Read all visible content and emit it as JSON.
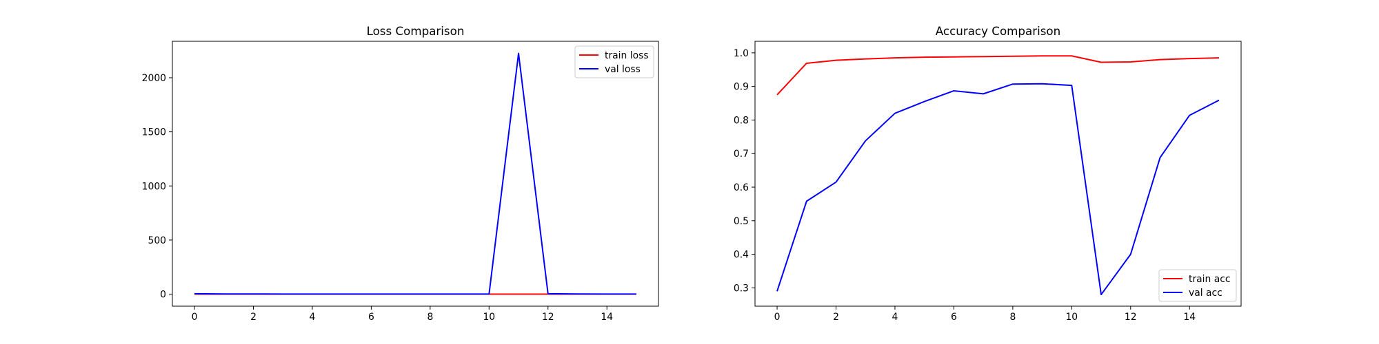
{
  "chart_data": [
    {
      "type": "line",
      "title": "Loss Comparison",
      "xlabel": "",
      "ylabel": "",
      "xlim": [
        -0.75,
        15.75
      ],
      "ylim": [
        -111,
        2337
      ],
      "xticks": [
        0,
        2,
        4,
        6,
        8,
        10,
        12,
        14
      ],
      "yticks": [
        0,
        500,
        1000,
        1500,
        2000
      ],
      "grid": false,
      "legend_position": "top-right",
      "x": [
        0,
        1,
        2,
        3,
        4,
        5,
        6,
        7,
        8,
        9,
        10,
        11,
        12,
        13,
        14,
        15
      ],
      "series": [
        {
          "name": "train loss",
          "color": "#ff0000",
          "values": [
            0.35,
            0.08,
            0.06,
            0.05,
            0.04,
            0.03,
            0.03,
            0.03,
            0.02,
            0.02,
            0.02,
            0.08,
            0.07,
            0.05,
            0.04,
            0.04
          ]
        },
        {
          "name": "val loss",
          "color": "#0000ff",
          "values": [
            4,
            2,
            2,
            1,
            1,
            1,
            1,
            1,
            1,
            1,
            1,
            2225,
            4,
            2,
            1,
            1
          ]
        }
      ]
    },
    {
      "type": "line",
      "title": "Accuracy Comparison",
      "xlabel": "",
      "ylabel": "",
      "xlim": [
        -0.75,
        15.75
      ],
      "ylim": [
        0.2455,
        1.0345
      ],
      "xticks": [
        0,
        2,
        4,
        6,
        8,
        10,
        12,
        14
      ],
      "yticks": [
        0.3,
        0.4,
        0.5,
        0.6,
        0.7,
        0.8,
        0.9,
        1.0
      ],
      "ytick_labels": [
        "0.3",
        "0.4",
        "0.5",
        "0.6",
        "0.7",
        "0.8",
        "0.9",
        "1.0"
      ],
      "grid": false,
      "legend_position": "bottom-right",
      "x": [
        0,
        1,
        2,
        3,
        4,
        5,
        6,
        7,
        8,
        9,
        10,
        11,
        12,
        13,
        14,
        15
      ],
      "series": [
        {
          "name": "train acc",
          "color": "#ff0000",
          "values": [
            0.875,
            0.969,
            0.978,
            0.982,
            0.985,
            0.987,
            0.988,
            0.989,
            0.99,
            0.991,
            0.991,
            0.972,
            0.973,
            0.98,
            0.983,
            0.985
          ]
        },
        {
          "name": "val acc",
          "color": "#0000ff",
          "values": [
            0.29,
            0.558,
            0.615,
            0.738,
            0.82,
            0.855,
            0.887,
            0.878,
            0.907,
            0.908,
            0.903,
            0.28,
            0.4,
            0.688,
            0.814,
            0.859
          ]
        }
      ]
    }
  ]
}
